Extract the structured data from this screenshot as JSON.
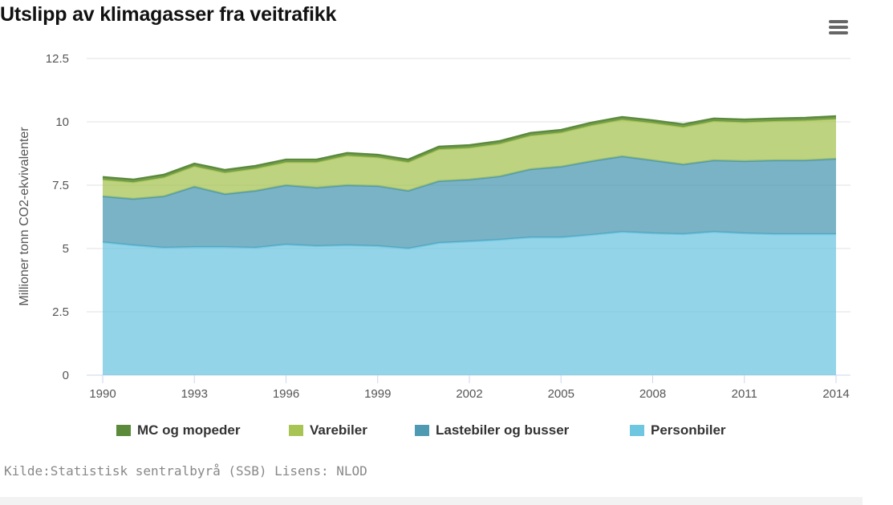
{
  "title": "Utslipp av klimagasser fra veitrafikk",
  "menu_icon": "hamburger-menu-icon",
  "source": "Kilde:Statistisk sentralbyrå (SSB) Lisens: NLOD",
  "chart_data": {
    "type": "area",
    "stacked": true,
    "title": "Utslipp av klimagasser fra veitrafikk",
    "xlabel": "",
    "ylabel": "Millioner tonn CO2-ekvivalenter",
    "x": [
      1990,
      1991,
      1992,
      1993,
      1994,
      1995,
      1996,
      1997,
      1998,
      1999,
      2000,
      2001,
      2002,
      2003,
      2004,
      2005,
      2006,
      2007,
      2008,
      2009,
      2010,
      2011,
      2012,
      2013,
      2014
    ],
    "xticks": [
      "1990",
      "1993",
      "1996",
      "1999",
      "2002",
      "2005",
      "2008",
      "2011",
      "2014"
    ],
    "yticks": [
      "0",
      "2.5",
      "5",
      "7.5",
      "10",
      "12.5"
    ],
    "ylim": [
      0,
      12.5
    ],
    "grid": true,
    "legend_position": "bottom",
    "series": [
      {
        "name": "Personbiler",
        "color": "#6fc6e0",
        "values": [
          5.25,
          5.13,
          5.03,
          5.06,
          5.06,
          5.03,
          5.16,
          5.1,
          5.13,
          5.1,
          5.0,
          5.22,
          5.28,
          5.35,
          5.44,
          5.44,
          5.54,
          5.66,
          5.6,
          5.57,
          5.66,
          5.6,
          5.57,
          5.57,
          5.57
        ]
      },
      {
        "name": "Lastebiler og busser",
        "color": "#4f9ab3",
        "values": [
          1.81,
          1.83,
          2.03,
          2.38,
          2.09,
          2.25,
          2.34,
          2.3,
          2.37,
          2.37,
          2.28,
          2.44,
          2.44,
          2.5,
          2.69,
          2.79,
          2.91,
          2.98,
          2.88,
          2.75,
          2.82,
          2.85,
          2.91,
          2.91,
          2.97
        ]
      },
      {
        "name": "Varebiler",
        "color": "#a8c455",
        "values": [
          0.66,
          0.66,
          0.75,
          0.81,
          0.85,
          0.88,
          0.91,
          1.01,
          1.17,
          1.13,
          1.13,
          1.26,
          1.26,
          1.29,
          1.33,
          1.35,
          1.42,
          1.45,
          1.48,
          1.48,
          1.55,
          1.54,
          1.55,
          1.58,
          1.58
        ]
      },
      {
        "name": "MC og mopeder",
        "color": "#5a8a3a",
        "values": [
          0.1,
          0.1,
          0.1,
          0.1,
          0.1,
          0.1,
          0.1,
          0.1,
          0.1,
          0.1,
          0.1,
          0.1,
          0.1,
          0.1,
          0.1,
          0.1,
          0.1,
          0.1,
          0.1,
          0.1,
          0.1,
          0.1,
          0.1,
          0.1,
          0.1
        ]
      }
    ],
    "legend_order": [
      "MC og mopeder",
      "Varebiler",
      "Lastebiler og busser",
      "Personbiler"
    ]
  }
}
